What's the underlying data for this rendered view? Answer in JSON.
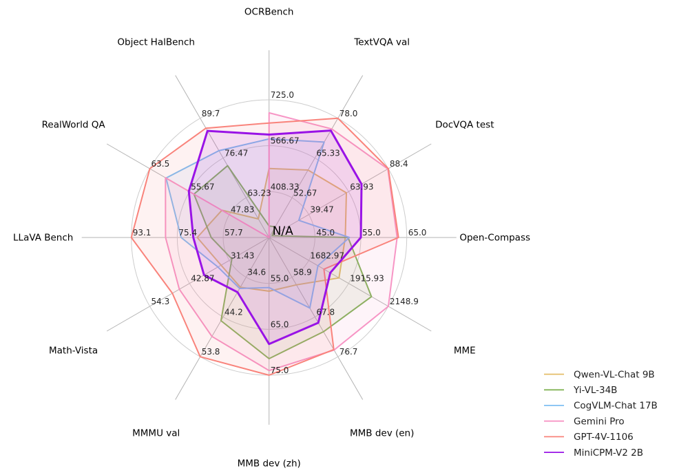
{
  "figure": {
    "background": "#ffffff",
    "center_label": "N/A"
  },
  "chart_data": {
    "type": "radar",
    "title": "",
    "grid": true,
    "rings": 3,
    "legend_position": "lower right",
    "center_label": "N/A",
    "axes": [
      {
        "label": "OCRBench",
        "min": 250,
        "max": 725,
        "ticks": [
          408.33,
          566.67,
          725.0
        ],
        "tick_labels": [
          "408.33",
          "566.67",
          "725.0"
        ]
      },
      {
        "label": "TextVQA val",
        "min": 40,
        "max": 78,
        "ticks": [
          52.67,
          65.33,
          78.0
        ],
        "tick_labels": [
          "52.67",
          "65.33",
          "78.0"
        ]
      },
      {
        "label": "DocVQA test",
        "min": 15,
        "max": 88.4,
        "ticks": [
          39.47,
          63.93,
          88.4
        ],
        "tick_labels": [
          "39.47",
          "63.93",
          "88.4"
        ]
      },
      {
        "label": "Open-Compass",
        "min": 35,
        "max": 65,
        "ticks": [
          45.0,
          55.0,
          65.0
        ],
        "tick_labels": [
          "45.0",
          "55.0",
          "65.0"
        ]
      },
      {
        "label": "MME",
        "min": 1450,
        "max": 2148.9,
        "ticks": [
          1682.97,
          1915.93,
          2148.9
        ],
        "tick_labels": [
          "1682.97",
          "1915.93",
          "2148.9"
        ]
      },
      {
        "label": "MMB dev (en)",
        "min": 50,
        "max": 76.7,
        "ticks": [
          58.9,
          67.8,
          76.7
        ],
        "tick_labels": [
          "58.9",
          "67.8",
          "76.7"
        ]
      },
      {
        "label": "MMB dev (zh)",
        "min": 45,
        "max": 75,
        "ticks": [
          55.0,
          65.0,
          75.0
        ],
        "tick_labels": [
          "55.0",
          "65.0",
          "75.0"
        ]
      },
      {
        "label": "MMMU val",
        "min": 25,
        "max": 53.8,
        "ticks": [
          34.6,
          44.2,
          53.8
        ],
        "tick_labels": [
          "34.6",
          "44.2",
          "53.8"
        ]
      },
      {
        "label": "Math-Vista",
        "min": 20,
        "max": 54.3,
        "ticks": [
          31.43,
          42.87,
          54.3
        ],
        "tick_labels": [
          "31.43",
          "42.87",
          "54.3"
        ]
      },
      {
        "label": "LLaVA Bench",
        "min": 40,
        "max": 93.1,
        "ticks": [
          57.7,
          75.4,
          93.1
        ],
        "tick_labels": [
          "57.7",
          "75.4",
          "93.1"
        ]
      },
      {
        "label": "RealWorld QA",
        "min": 40,
        "max": 63.5,
        "ticks": [
          47.83,
          55.67,
          63.5
        ],
        "tick_labels": [
          "47.83",
          "55.67",
          "63.5"
        ]
      },
      {
        "label": "Object HalBench",
        "min": 50,
        "max": 89.7,
        "ticks": [
          63.23,
          76.47,
          89.7
        ],
        "tick_labels": [
          "63.23",
          "76.47",
          "89.7"
        ]
      }
    ],
    "series": [
      {
        "name": "Qwen-VL-Chat 9B",
        "color": "#e4bd68",
        "values": [
          488,
          61.5,
          62.6,
          51.6,
          1860.0,
          60.6,
          56.7,
          37.0,
          33.8,
          67.7,
          49.3,
          56.2
        ]
      },
      {
        "name": "Yi-VL-34B",
        "color": "#82b356",
        "values": [
          290,
          43.4,
          16.9,
          52.2,
          2050.2,
          71.1,
          71.4,
          45.1,
          30.7,
          62.3,
          54.8,
          73.9
        ]
      },
      {
        "name": "CogVLM-Chat 17B",
        "color": "#7ebef2",
        "values": [
          590,
          70.4,
          33.3,
          52.5,
          1736.6,
          65.8,
          55.9,
          37.3,
          34.7,
          73.9,
          60.3,
          78.9
        ]
      },
      {
        "name": "Gemini Pro",
        "color": "#f795c5",
        "values": [
          680,
          74.6,
          88.1,
          62.9,
          2148.9,
          75.2,
          74.0,
          48.9,
          45.8,
          79.9,
          60.4,
          null
        ]
      },
      {
        "name": "GPT-4V-1106",
        "color": "#f9837b",
        "values": [
          645,
          78.0,
          88.4,
          63.2,
          1771.5,
          75.1,
          75.0,
          53.8,
          47.8,
          93.1,
          63.5,
          86.4
        ]
      },
      {
        "name": "MiniCPM-V2 2B",
        "color": "#9913e6",
        "values": [
          605,
          74.1,
          71.9,
          55.0,
          1808.6,
          69.1,
          68.2,
          38.2,
          38.7,
          69.2,
          55.8,
          85.5
        ]
      }
    ]
  }
}
